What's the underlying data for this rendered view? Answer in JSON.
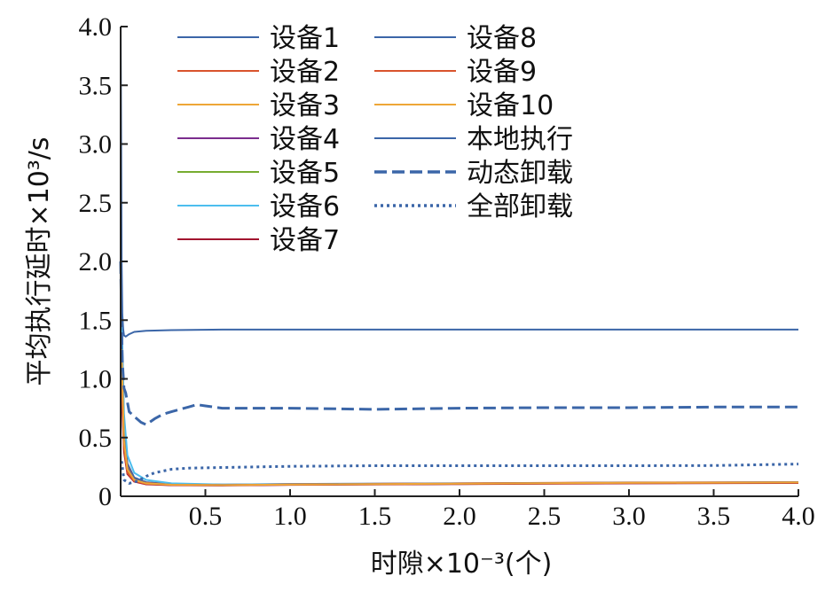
{
  "chart_data": {
    "type": "line",
    "xlabel": "时隙×10⁻³(个)",
    "ylabel": "平均执行延时×10³/s",
    "xlim": [
      0,
      4.0
    ],
    "ylim": [
      0,
      4.0
    ],
    "x_ticks": [
      0.5,
      1.0,
      1.5,
      2.0,
      2.5,
      3.0,
      3.5,
      4.0
    ],
    "x_tick_labels": [
      "0.5",
      "1.0",
      "1.5",
      "2.0",
      "2.5",
      "3.0",
      "3.5",
      "4.0"
    ],
    "y_ticks": [
      0,
      0.5,
      1.0,
      1.5,
      2.0,
      2.5,
      3.0,
      3.5,
      4.0
    ],
    "y_tick_labels": [
      "0",
      "0.5",
      "1.0",
      "1.5",
      "2.0",
      "2.5",
      "3.0",
      "3.5",
      "4.0"
    ],
    "grid": false,
    "legend_position": "top",
    "series": [
      {
        "name": "设备1",
        "color": "#3b66a8",
        "style": "solid",
        "x": [
          0.005,
          0.02,
          0.04,
          0.08,
          0.15,
          0.3,
          0.6,
          1.0,
          2.0,
          3.0,
          4.0
        ],
        "y": [
          1.6,
          0.6,
          0.28,
          0.16,
          0.12,
          0.105,
          0.1,
          0.105,
          0.11,
          0.115,
          0.12
        ]
      },
      {
        "name": "设备2",
        "color": "#d9542c",
        "style": "solid",
        "x": [
          0.005,
          0.02,
          0.04,
          0.08,
          0.15,
          0.3,
          0.6,
          1.0,
          2.0,
          3.0,
          4.0
        ],
        "y": [
          1.2,
          0.5,
          0.25,
          0.15,
          0.115,
          0.1,
          0.098,
          0.103,
          0.11,
          0.118,
          0.12
        ]
      },
      {
        "name": "设备3",
        "color": "#eea637",
        "style": "solid",
        "x": [
          0.005,
          0.02,
          0.04,
          0.08,
          0.15,
          0.3,
          0.6,
          1.0,
          2.0,
          3.0,
          4.0
        ],
        "y": [
          1.4,
          0.45,
          0.22,
          0.14,
          0.11,
          0.098,
          0.095,
          0.1,
          0.108,
          0.115,
          0.118
        ]
      },
      {
        "name": "设备4",
        "color": "#7b2d8e",
        "style": "solid",
        "x": [
          0.005,
          0.02,
          0.04,
          0.08,
          0.15,
          0.3,
          0.6,
          1.0,
          2.0,
          3.0,
          4.0
        ],
        "y": [
          1.0,
          0.4,
          0.2,
          0.13,
          0.105,
          0.095,
          0.093,
          0.098,
          0.105,
          0.112,
          0.115
        ]
      },
      {
        "name": "设备5",
        "color": "#77ac30",
        "style": "solid",
        "x": [
          0.005,
          0.02,
          0.04,
          0.08,
          0.15,
          0.3,
          0.6,
          1.0,
          2.0,
          3.0,
          4.0
        ],
        "y": [
          1.1,
          0.42,
          0.21,
          0.13,
          0.108,
          0.096,
          0.094,
          0.1,
          0.106,
          0.113,
          0.116
        ]
      },
      {
        "name": "设备6",
        "color": "#4dbeee",
        "style": "solid",
        "x": [
          0.005,
          0.02,
          0.04,
          0.08,
          0.15,
          0.3,
          0.6,
          1.0,
          2.0,
          3.0,
          4.0
        ],
        "y": [
          1.5,
          0.7,
          0.35,
          0.2,
          0.14,
          0.11,
          0.1,
          0.103,
          0.108,
          0.114,
          0.117
        ]
      },
      {
        "name": "设备7",
        "color": "#a2142f",
        "style": "solid",
        "x": [
          0.005,
          0.02,
          0.04,
          0.08,
          0.15,
          0.3,
          0.6,
          1.0,
          2.0,
          3.0,
          4.0
        ],
        "y": [
          0.9,
          0.38,
          0.19,
          0.125,
          0.102,
          0.094,
          0.092,
          0.097,
          0.104,
          0.11,
          0.113
        ]
      },
      {
        "name": "设备8",
        "color": "#3b66a8",
        "style": "solid",
        "x": [
          0.005,
          0.02,
          0.04,
          0.08,
          0.15,
          0.3,
          0.6,
          1.0,
          2.0,
          3.0,
          4.0
        ],
        "y": [
          1.3,
          0.48,
          0.24,
          0.15,
          0.112,
          0.099,
          0.096,
          0.101,
          0.109,
          0.116,
          0.119
        ]
      },
      {
        "name": "设备9",
        "color": "#d9542c",
        "style": "solid",
        "x": [
          0.005,
          0.02,
          0.04,
          0.08,
          0.15,
          0.3,
          0.6,
          1.0,
          2.0,
          3.0,
          4.0
        ],
        "y": [
          1.05,
          0.41,
          0.2,
          0.13,
          0.106,
          0.097,
          0.095,
          0.1,
          0.107,
          0.114,
          0.117
        ]
      },
      {
        "name": "设备10",
        "color": "#eea637",
        "style": "solid",
        "x": [
          0.005,
          0.02,
          0.04,
          0.08,
          0.15,
          0.3,
          0.6,
          1.0,
          2.0,
          3.0,
          4.0
        ],
        "y": [
          1.25,
          0.47,
          0.23,
          0.14,
          0.11,
          0.098,
          0.095,
          0.1,
          0.108,
          0.115,
          0.118
        ]
      },
      {
        "name": "本地执行",
        "color": "#3b66a8",
        "style": "solid",
        "x": [
          0,
          0.003,
          0.006,
          0.01,
          0.015,
          0.02,
          0.03,
          0.05,
          0.08,
          0.15,
          0.3,
          0.6,
          1.0,
          2.0,
          3.0,
          4.0
        ],
        "y": [
          4.0,
          3.0,
          2.0,
          1.55,
          1.42,
          1.37,
          1.36,
          1.38,
          1.4,
          1.41,
          1.415,
          1.42,
          1.42,
          1.42,
          1.42,
          1.42
        ]
      },
      {
        "name": "动态卸载",
        "color": "#3b66a8",
        "style": "dashed",
        "x": [
          0.0,
          0.005,
          0.01,
          0.02,
          0.03,
          0.05,
          0.08,
          0.12,
          0.15,
          0.2,
          0.25,
          0.3,
          0.35,
          0.4,
          0.45,
          0.5,
          0.6,
          0.8,
          1.0,
          1.5,
          2.0,
          2.5,
          3.0,
          3.5,
          4.0
        ],
        "y": [
          2.0,
          1.5,
          1.15,
          0.92,
          0.88,
          0.72,
          0.68,
          0.63,
          0.61,
          0.66,
          0.7,
          0.72,
          0.74,
          0.76,
          0.78,
          0.77,
          0.75,
          0.75,
          0.75,
          0.74,
          0.75,
          0.755,
          0.755,
          0.76,
          0.76
        ]
      },
      {
        "name": "全部卸载",
        "color": "#3b66a8",
        "style": "dotted",
        "x": [
          0.005,
          0.02,
          0.05,
          0.1,
          0.15,
          0.2,
          0.3,
          0.4,
          0.6,
          1.0,
          1.5,
          2.0,
          3.0,
          3.5,
          4.0
        ],
        "y": [
          0.3,
          0.14,
          0.11,
          0.13,
          0.17,
          0.2,
          0.23,
          0.24,
          0.245,
          0.255,
          0.26,
          0.26,
          0.26,
          0.262,
          0.275
        ]
      }
    ]
  }
}
